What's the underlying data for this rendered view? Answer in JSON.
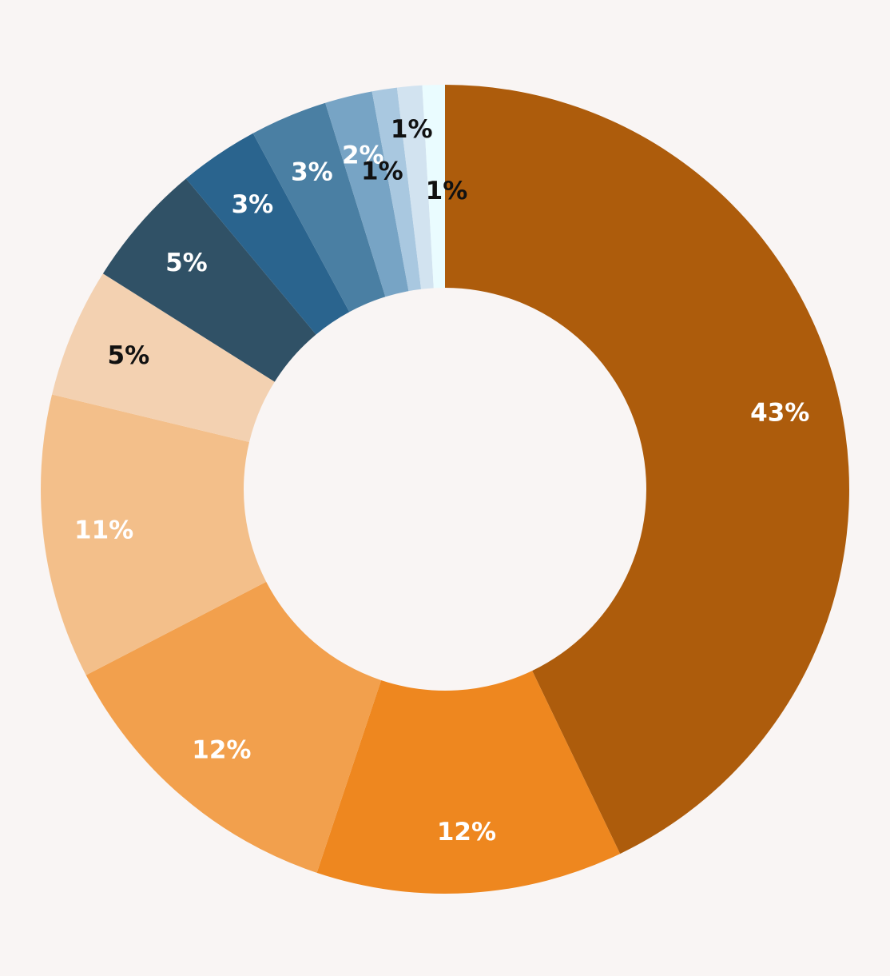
{
  "chart_data": {
    "type": "pie",
    "donut": true,
    "title": "",
    "legend": "none",
    "slices": [
      {
        "value": 43.0,
        "label": "43%",
        "color": "#ad5c0c",
        "label_color": "#ffffff"
      },
      {
        "value": 12.3,
        "label": "12%",
        "color": "#ee871f",
        "label_color": "#ffffff"
      },
      {
        "value": 12.3,
        "label": "12%",
        "color": "#f2a04d",
        "label_color": "#ffffff"
      },
      {
        "value": 11.4,
        "label": "11%",
        "color": "#f3bf8a",
        "label_color": "#ffffff"
      },
      {
        "value": 5.2,
        "label": "5%",
        "color": "#f3d1b1",
        "label_color": "#111111"
      },
      {
        "value": 5.0,
        "label": "5%",
        "color": "#305166",
        "label_color": "#ffffff"
      },
      {
        "value": 3.2,
        "label": "3%",
        "color": "#2a648e",
        "label_color": "#ffffff"
      },
      {
        "value": 3.1,
        "label": "3%",
        "color": "#4a7fa3",
        "label_color": "#ffffff"
      },
      {
        "value": 1.9,
        "label": "2%",
        "color": "#77a4c5",
        "label_color": "#ffffff"
      },
      {
        "value": 1.0,
        "label": "1%",
        "color": "#a9c8e0",
        "label_color": "#111111"
      },
      {
        "value": 1.0,
        "label": "1%",
        "color": "#d2e3f0",
        "label_color": "#111111"
      },
      {
        "value": 0.9,
        "label": "1%",
        "color": "#eafcff",
        "label_color": "#111111"
      }
    ]
  }
}
